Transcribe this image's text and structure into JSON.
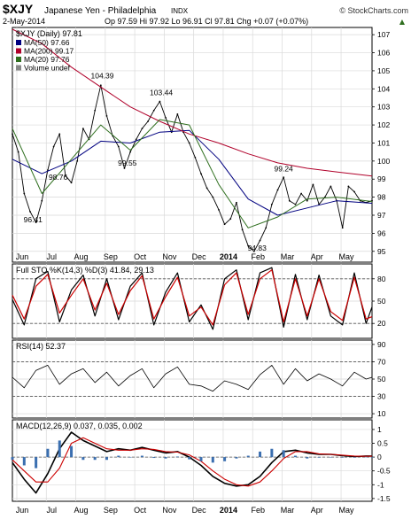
{
  "header": {
    "symbol": "$XJY",
    "name": "Japanese Yen - Philadelphia",
    "exchange": "INDX",
    "watermark": "© StockCharts.com",
    "date": "2-May-2014",
    "quote": "Op 97.59  Hi 97.92  Lo 96.91  Cl 97.81  Chg +0.07 (+0.07%)",
    "quote_arrow": "▲"
  },
  "colors": {
    "price": "#000000",
    "ma50": "#000080",
    "ma200": "#b0002a",
    "ma20": "#2f6f1f",
    "stoch_k": "#000000",
    "stoch_d": "#cc0000",
    "rsi": "#000000",
    "macd": "#000000",
    "signal": "#cc0000",
    "hist": "#3b6fb0",
    "grid": "#d9d9d9"
  },
  "chart_data": [
    {
      "type": "line",
      "panel": "price",
      "title": "$XJY (Daily) 97.81",
      "y_ticks": [
        95,
        96,
        97,
        98,
        99,
        100,
        101,
        102,
        103,
        104,
        105,
        106,
        107
      ],
      "ylim": [
        94.4,
        107.4
      ],
      "x_tick_labels": [
        "Jun",
        "Jul",
        "Aug",
        "Sep",
        "Oct",
        "Nov",
        "Dec",
        "2014",
        "Feb",
        "Mar",
        "Apr",
        "May"
      ],
      "legend": [
        {
          "label": "MA(50) 97.66",
          "color": "#000080"
        },
        {
          "label": "MA(200) 99.17",
          "color": "#b0002a"
        },
        {
          "label": "MA(20) 97.76",
          "color": "#2f6f1f"
        },
        {
          "label": "Volume undef",
          "color": "#888888"
        }
      ],
      "annotations": [
        {
          "text": "104.39",
          "x": 3.05,
          "y": 104.39
        },
        {
          "text": "103.44",
          "x": 5.05,
          "y": 103.44
        },
        {
          "text": "99.55",
          "x": 3.9,
          "y": 99.55
        },
        {
          "text": "98.76",
          "x": 1.55,
          "y": 98.76
        },
        {
          "text": "96.41",
          "x": 0.7,
          "y": 96.41
        },
        {
          "text": "94.83",
          "x": 8.3,
          "y": 94.83
        },
        {
          "text": "99.24",
          "x": 9.2,
          "y": 99.24
        }
      ],
      "series": [
        {
          "name": "$XJY",
          "x": [
            0.0,
            0.2,
            0.4,
            0.6,
            0.8,
            1.0,
            1.2,
            1.4,
            1.6,
            1.8,
            2.0,
            2.2,
            2.4,
            2.6,
            2.8,
            3.0,
            3.2,
            3.4,
            3.6,
            3.8,
            4.0,
            4.2,
            4.4,
            4.6,
            4.8,
            5.0,
            5.2,
            5.4,
            5.6,
            5.8,
            6.0,
            6.2,
            6.4,
            6.6,
            6.8,
            7.0,
            7.2,
            7.4,
            7.6,
            7.8,
            8.0,
            8.2,
            8.4,
            8.6,
            8.8,
            9.0,
            9.2,
            9.4,
            9.6,
            9.8,
            10.0,
            10.2,
            10.4,
            10.6,
            10.8,
            11.0,
            11.2,
            11.4,
            11.6,
            11.8,
            12.0,
            12.2
          ],
          "values": [
            101.5,
            100.5,
            98.2,
            97.2,
            96.6,
            97.8,
            99.5,
            100.8,
            101.5,
            99.2,
            98.8,
            100.0,
            101.8,
            101.2,
            102.8,
            104.2,
            102.5,
            101.4,
            100.8,
            99.6,
            100.5,
            101.2,
            101.8,
            102.2,
            102.8,
            103.3,
            102.4,
            101.6,
            102.6,
            101.6,
            101.0,
            100.2,
            99.3,
            98.5,
            98.0,
            97.3,
            96.5,
            96.8,
            97.7,
            96.2,
            95.3,
            95.0,
            95.6,
            96.3,
            97.6,
            98.4,
            99.1,
            97.8,
            97.6,
            98.2,
            97.8,
            98.7,
            97.6,
            98.0,
            98.6,
            97.8,
            96.3,
            98.6,
            98.3,
            97.8,
            97.7,
            97.8
          ]
        },
        {
          "name": "MA(50)",
          "x": [
            0.0,
            1.0,
            2.0,
            3.0,
            4.0,
            5.0,
            6.0,
            7.0,
            8.0,
            9.0,
            10.0,
            11.0,
            12.2
          ],
          "values": [
            100.1,
            99.3,
            100.0,
            101.1,
            101.0,
            101.6,
            101.7,
            100.1,
            97.9,
            97.0,
            97.4,
            97.8,
            97.66
          ]
        },
        {
          "name": "MA(200)",
          "x": [
            0.0,
            1.0,
            2.0,
            3.0,
            4.0,
            5.0,
            6.0,
            7.0,
            8.0,
            9.0,
            10.0,
            11.0,
            12.2
          ],
          "values": [
            107.3,
            106.5,
            105.2,
            104.1,
            103.0,
            102.2,
            101.5,
            101.0,
            100.4,
            99.9,
            99.6,
            99.4,
            99.17
          ]
        },
        {
          "name": "MA(20)",
          "x": [
            0.0,
            1.0,
            2.0,
            3.0,
            4.0,
            5.0,
            6.0,
            7.0,
            8.0,
            9.0,
            10.0,
            11.0,
            12.2
          ],
          "values": [
            101.8,
            98.2,
            100.1,
            102.0,
            100.6,
            102.3,
            102.0,
            98.7,
            96.3,
            96.9,
            97.9,
            98.0,
            97.76
          ]
        }
      ]
    },
    {
      "type": "line",
      "panel": "stochastic",
      "title": "Full STO %K(14,3) %D(3) 41.84, 29.13",
      "y_ticks": [
        20,
        50,
        80
      ],
      "ylim": [
        0,
        100
      ],
      "bands": [
        20,
        80
      ],
      "series": [
        {
          "name": "%K",
          "x": [
            0.0,
            0.4,
            0.8,
            1.2,
            1.6,
            2.0,
            2.4,
            2.8,
            3.2,
            3.6,
            4.0,
            4.4,
            4.8,
            5.2,
            5.6,
            6.0,
            6.4,
            6.8,
            7.2,
            7.6,
            8.0,
            8.4,
            8.8,
            9.2,
            9.6,
            10.0,
            10.4,
            10.8,
            11.2,
            11.6,
            12.0,
            12.2
          ],
          "values": [
            52,
            18,
            80,
            90,
            22,
            65,
            85,
            30,
            80,
            25,
            70,
            88,
            18,
            62,
            88,
            22,
            45,
            12,
            80,
            92,
            25,
            88,
            95,
            15,
            86,
            25,
            85,
            30,
            18,
            88,
            20,
            42
          ]
        },
        {
          "name": "%D",
          "x": [
            0.0,
            0.4,
            0.8,
            1.2,
            1.6,
            2.0,
            2.4,
            2.8,
            3.2,
            3.6,
            4.0,
            4.4,
            4.8,
            5.2,
            5.6,
            6.0,
            6.4,
            6.8,
            7.2,
            7.6,
            8.0,
            8.4,
            8.8,
            9.2,
            9.6,
            10.0,
            10.4,
            10.8,
            11.2,
            11.6,
            12.0,
            12.2
          ],
          "values": [
            58,
            26,
            70,
            86,
            34,
            58,
            80,
            38,
            74,
            32,
            64,
            84,
            26,
            56,
            82,
            30,
            42,
            18,
            72,
            88,
            32,
            80,
            92,
            22,
            80,
            30,
            80,
            36,
            24,
            82,
            26,
            29
          ]
        }
      ]
    },
    {
      "type": "line",
      "panel": "rsi",
      "title": "RSI(14) 52.37",
      "y_ticks": [
        10,
        30,
        50,
        70,
        90
      ],
      "ylim": [
        5,
        95
      ],
      "bands": [
        30,
        70
      ],
      "series": [
        {
          "name": "RSI(14)",
          "x": [
            0.0,
            0.4,
            0.8,
            1.2,
            1.6,
            2.0,
            2.4,
            2.8,
            3.2,
            3.6,
            4.0,
            4.4,
            4.8,
            5.2,
            5.6,
            6.0,
            6.4,
            6.8,
            7.2,
            7.6,
            8.0,
            8.4,
            8.8,
            9.2,
            9.6,
            10.0,
            10.4,
            10.8,
            11.2,
            11.6,
            12.0,
            12.2
          ],
          "values": [
            52,
            40,
            60,
            66,
            44,
            56,
            62,
            46,
            58,
            42,
            54,
            62,
            40,
            56,
            64,
            44,
            42,
            36,
            48,
            44,
            38,
            55,
            66,
            44,
            62,
            48,
            56,
            50,
            42,
            58,
            50,
            52
          ]
        }
      ]
    },
    {
      "type": "line",
      "panel": "macd",
      "title": "MACD(12,26,9) 0.037, 0.035, 0.002",
      "y_ticks": [
        -1.5,
        -1.0,
        -0.5,
        0.0,
        0.5,
        1.0
      ],
      "ylim": [
        -1.6,
        1.35
      ],
      "series": [
        {
          "name": "MACD",
          "x": [
            0.0,
            0.4,
            0.8,
            1.2,
            1.6,
            2.0,
            2.4,
            2.8,
            3.2,
            3.6,
            4.0,
            4.4,
            4.8,
            5.2,
            5.6,
            6.0,
            6.4,
            6.8,
            7.2,
            7.6,
            8.0,
            8.4,
            8.8,
            9.2,
            9.6,
            10.0,
            10.4,
            10.8,
            11.2,
            11.6,
            12.0,
            12.2
          ],
          "values": [
            -0.2,
            -0.8,
            -1.3,
            -0.6,
            0.3,
            0.9,
            0.6,
            0.4,
            0.2,
            0.3,
            0.25,
            0.35,
            0.25,
            0.15,
            0.2,
            0.0,
            -0.3,
            -0.7,
            -0.95,
            -1.05,
            -1.0,
            -0.7,
            -0.2,
            0.2,
            0.25,
            0.15,
            0.1,
            0.1,
            0.05,
            0.02,
            0.04,
            0.037
          ]
        },
        {
          "name": "Signal",
          "x": [
            0.0,
            0.4,
            0.8,
            1.2,
            1.6,
            2.0,
            2.4,
            2.8,
            3.2,
            3.6,
            4.0,
            4.4,
            4.8,
            5.2,
            5.6,
            6.0,
            6.4,
            6.8,
            7.2,
            7.6,
            8.0,
            8.4,
            8.8,
            9.2,
            9.6,
            10.0,
            10.4,
            10.8,
            11.2,
            11.6,
            12.0,
            12.2
          ],
          "values": [
            -0.1,
            -0.5,
            -0.9,
            -0.9,
            -0.4,
            0.5,
            0.7,
            0.5,
            0.3,
            0.25,
            0.25,
            0.3,
            0.28,
            0.2,
            0.18,
            0.08,
            -0.15,
            -0.5,
            -0.8,
            -1.0,
            -1.05,
            -0.9,
            -0.5,
            -0.05,
            0.2,
            0.2,
            0.12,
            0.1,
            0.07,
            0.04,
            0.03,
            0.035
          ]
        },
        {
          "name": "Histogram",
          "x": [
            0.0,
            0.4,
            0.8,
            1.2,
            1.6,
            2.0,
            2.4,
            2.8,
            3.2,
            3.6,
            4.0,
            4.4,
            4.8,
            5.2,
            5.6,
            6.0,
            6.4,
            6.8,
            7.2,
            7.6,
            8.0,
            8.4,
            8.8,
            9.2,
            9.6,
            10.0,
            10.4,
            10.8,
            11.2,
            11.6,
            12.0,
            12.2
          ],
          "values": [
            -0.1,
            -0.3,
            -0.4,
            0.3,
            0.6,
            0.4,
            -0.1,
            -0.1,
            -0.1,
            0.05,
            0.0,
            0.05,
            -0.03,
            -0.05,
            0.02,
            -0.08,
            -0.15,
            -0.2,
            -0.15,
            -0.05,
            0.05,
            0.2,
            0.3,
            0.25,
            0.05,
            -0.05,
            -0.02,
            0.0,
            -0.02,
            -0.02,
            0.01,
            0.002
          ]
        }
      ]
    }
  ]
}
